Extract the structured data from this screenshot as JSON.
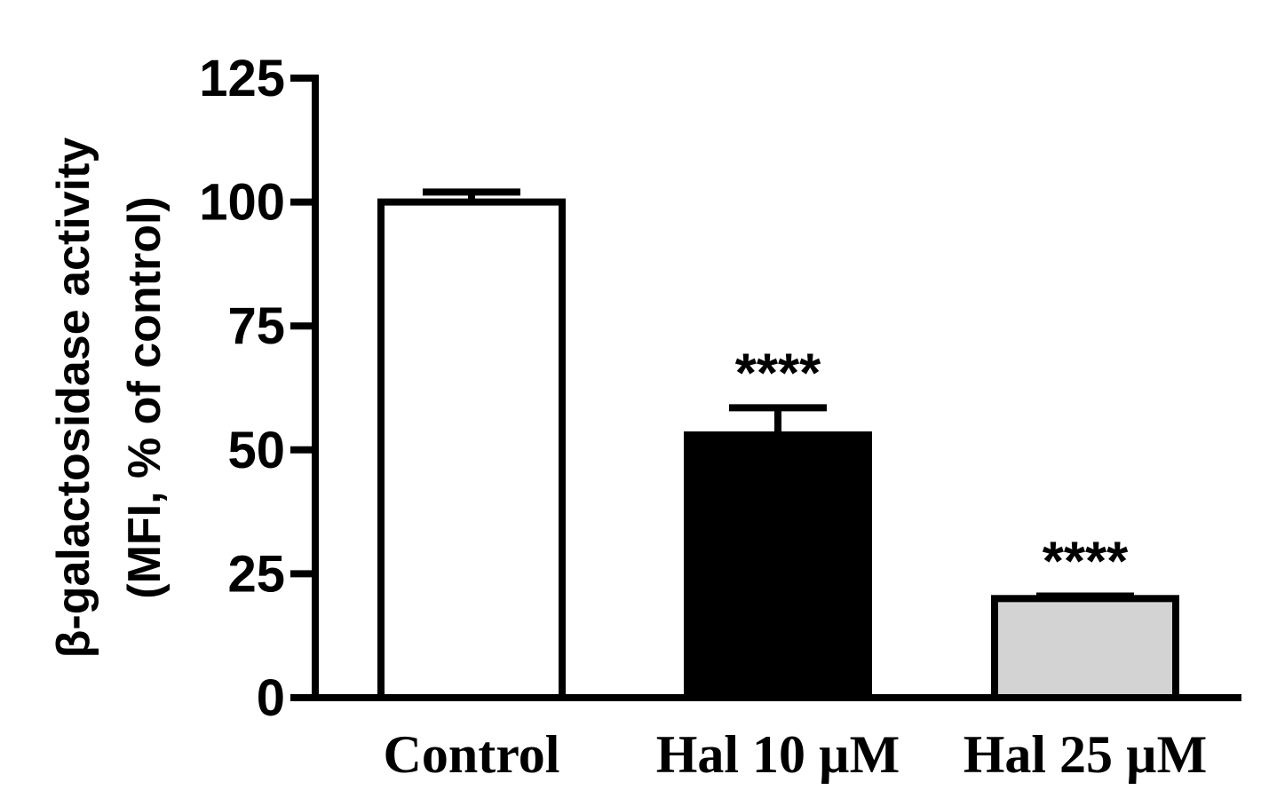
{
  "chart_data": {
    "type": "bar",
    "title": "",
    "xlabel": "",
    "ylabel_line1": "β-galactosidase activity",
    "ylabel_line2": "(MFI, % of control)",
    "ylim": [
      0,
      125
    ],
    "yticks": [
      0,
      25,
      50,
      75,
      100,
      125
    ],
    "categories": [
      "Control",
      "Hal 10 µM",
      "Hal 25 µM"
    ],
    "values": [
      100,
      53,
      20
    ],
    "errors": [
      2,
      5.5,
      0.5
    ],
    "bar_fills": [
      "#ffffff",
      "#000000",
      "#d3d3d3"
    ],
    "annotations": [
      "",
      "****",
      "****"
    ],
    "grid": false,
    "legend": "none"
  }
}
